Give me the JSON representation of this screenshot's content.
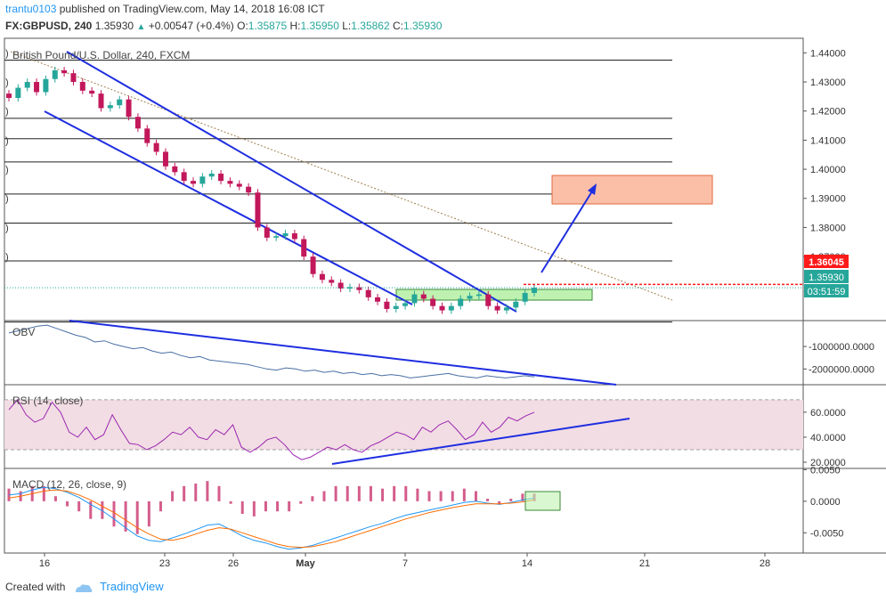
{
  "header": {
    "user": "trantu0103",
    "published": "published on TradingView.com, May 14, 2018 16:08 ICT",
    "symbol": "FX:GBPUSD, 240",
    "last": "1.35930",
    "change": "+0.00547 (+0.4%)",
    "o_label": "O:",
    "o": "1.35875",
    "h_label": "H:",
    "h": "1.35950",
    "l_label": "L:",
    "l": "1.35862",
    "c_label": "C:",
    "c": "1.35930"
  },
  "footer": {
    "created_with": "Created with",
    "brand": "TradingView"
  },
  "colors": {
    "up": "#26a69a",
    "down": "#ef5350",
    "candle": "#c2185b",
    "channel": "#1f2ee0",
    "obv": "#4a6fa5",
    "rsi": "#9c27b0",
    "macd": "#2196f3",
    "signal": "#ff6d00",
    "zone_red": "#fbbfa8",
    "zone_green": "#bff2b0"
  },
  "chart_data": [
    {
      "type": "candlestick",
      "title": "British Pound/U.S. Dollar, 240, FXCM",
      "x_ticks": [
        "16",
        "23",
        "26",
        "May",
        "7",
        "14",
        "21",
        "28"
      ],
      "y_ticks": [
        "1.44000",
        "1.43000",
        "1.42000",
        "1.41000",
        "1.40000",
        "1.39000",
        "1.38000",
        "1.37000"
      ],
      "ylim": [
        1.348,
        1.445
      ],
      "horizontal_levels": [
        1.4375,
        1.4175,
        1.4105,
        1.4025,
        1.3915,
        1.3815,
        1.3685,
        1.3475
      ],
      "resistance_dotted": 1.36045,
      "price_labels": {
        "resistance": "1.36045",
        "last": "1.35930",
        "countdown": "03:51:59"
      },
      "series": [
        {
          "name": "GBPUSD close",
          "values": [
            1.4245,
            1.428,
            1.43,
            1.4265,
            1.431,
            1.434,
            1.433,
            1.43,
            1.427,
            1.426,
            1.421,
            1.422,
            1.424,
            1.418,
            1.414,
            1.409,
            1.406,
            1.401,
            1.399,
            1.396,
            1.395,
            1.3975,
            1.3985,
            1.396,
            1.395,
            1.394,
            1.392,
            1.38,
            1.3765,
            1.377,
            1.378,
            1.376,
            1.37,
            1.364,
            1.362,
            1.361,
            1.359,
            1.3595,
            1.3585,
            1.356,
            1.3545,
            1.352,
            1.353,
            1.354,
            1.357,
            1.3555,
            1.353,
            1.3515,
            1.353,
            1.3555,
            1.3565,
            1.357,
            1.353,
            1.3515,
            1.3525,
            1.3545,
            1.3575,
            1.3593
          ]
        }
      ]
    },
    {
      "type": "line",
      "title": "OBV",
      "y_ticks": [
        "-1000000.0000",
        "-2000000.0000"
      ],
      "ylim": [
        -2700000,
        150000
      ],
      "series": [
        {
          "name": "OBV",
          "values": [
            -400000,
            -300000,
            -200000,
            -100000,
            -50000,
            -200000,
            -350000,
            -500000,
            -600000,
            -800000,
            -750000,
            -900000,
            -1000000,
            -1100000,
            -1050000,
            -1200000,
            -1300000,
            -1250000,
            -1400000,
            -1500000,
            -1450000,
            -1600000,
            -1650000,
            -1700000,
            -1750000,
            -1800000,
            -1900000,
            -2000000,
            -2050000,
            -1950000,
            -2000000,
            -2100000,
            -2050000,
            -2150000,
            -2100000,
            -2200000,
            -2150000,
            -2250000,
            -2200000,
            -2300000,
            -2250000,
            -2300000,
            -2400000,
            -2350000,
            -2300000,
            -2250000,
            -2200000,
            -2300000,
            -2350000,
            -2400000,
            -2300000,
            -2350000,
            -2400000,
            -2350000,
            -2300000,
            -2350000
          ]
        }
      ]
    },
    {
      "type": "line",
      "title": "RSI (14, close)",
      "y_ticks": [
        "60.0000",
        "40.0000",
        "20.0000"
      ],
      "ylim": [
        15,
        82
      ],
      "band": [
        30,
        70
      ],
      "series": [
        {
          "name": "RSI",
          "values": [
            62,
            70,
            58,
            52,
            55,
            68,
            60,
            44,
            40,
            48,
            38,
            42,
            58,
            46,
            35,
            34,
            30,
            33,
            38,
            44,
            42,
            48,
            40,
            38,
            46,
            42,
            50,
            32,
            28,
            32,
            38,
            40,
            34,
            26,
            22,
            24,
            28,
            32,
            30,
            34,
            30,
            28,
            33,
            36,
            40,
            44,
            42,
            38,
            48,
            44,
            50,
            53,
            46,
            38,
            42,
            52,
            44,
            48,
            56,
            53,
            57,
            60
          ]
        }
      ]
    },
    {
      "type": "line",
      "title": "MACD (12, 26, close, 9)",
      "y_ticks": [
        "0.0050",
        "0.0000",
        "-0.0050"
      ],
      "ylim": [
        -0.0082,
        0.0052
      ],
      "series": [
        {
          "name": "MACD",
          "values": [
            0.001,
            0.0012,
            0.0018,
            0.0022,
            0.002,
            0.0014,
            0.0006,
            -0.0005,
            -0.0015,
            -0.0028,
            -0.0042,
            -0.0055,
            -0.0062,
            -0.0064,
            -0.0058,
            -0.0052,
            -0.0045,
            -0.0038,
            -0.0036,
            -0.0045,
            -0.0055,
            -0.0062,
            -0.0066,
            -0.0072,
            -0.0076,
            -0.0074,
            -0.007,
            -0.0064,
            -0.0058,
            -0.0052,
            -0.0046,
            -0.004,
            -0.0035,
            -0.0028,
            -0.0022,
            -0.0018,
            -0.0014,
            -0.001,
            -0.0006,
            -0.0002,
            0.0,
            -0.0003,
            -0.0005,
            -0.0002,
            0.0002,
            0.0005
          ]
        },
        {
          "name": "Signal",
          "values": [
            0.0005,
            0.0008,
            0.0012,
            0.0016,
            0.0018,
            0.0016,
            0.001,
            0.0002,
            -0.0008,
            -0.0018,
            -0.003,
            -0.0042,
            -0.0052,
            -0.006,
            -0.0062,
            -0.0058,
            -0.0052,
            -0.0046,
            -0.0042,
            -0.0044,
            -0.005,
            -0.0056,
            -0.0062,
            -0.0068,
            -0.0072,
            -0.0073,
            -0.0072,
            -0.0068,
            -0.0064,
            -0.0058,
            -0.0052,
            -0.0046,
            -0.004,
            -0.0034,
            -0.0028,
            -0.0023,
            -0.0018,
            -0.0014,
            -0.001,
            -0.0007,
            -0.0004,
            -0.0004,
            -0.0004,
            -0.0003,
            -0.0001,
            0.0002
          ]
        }
      ]
    }
  ]
}
